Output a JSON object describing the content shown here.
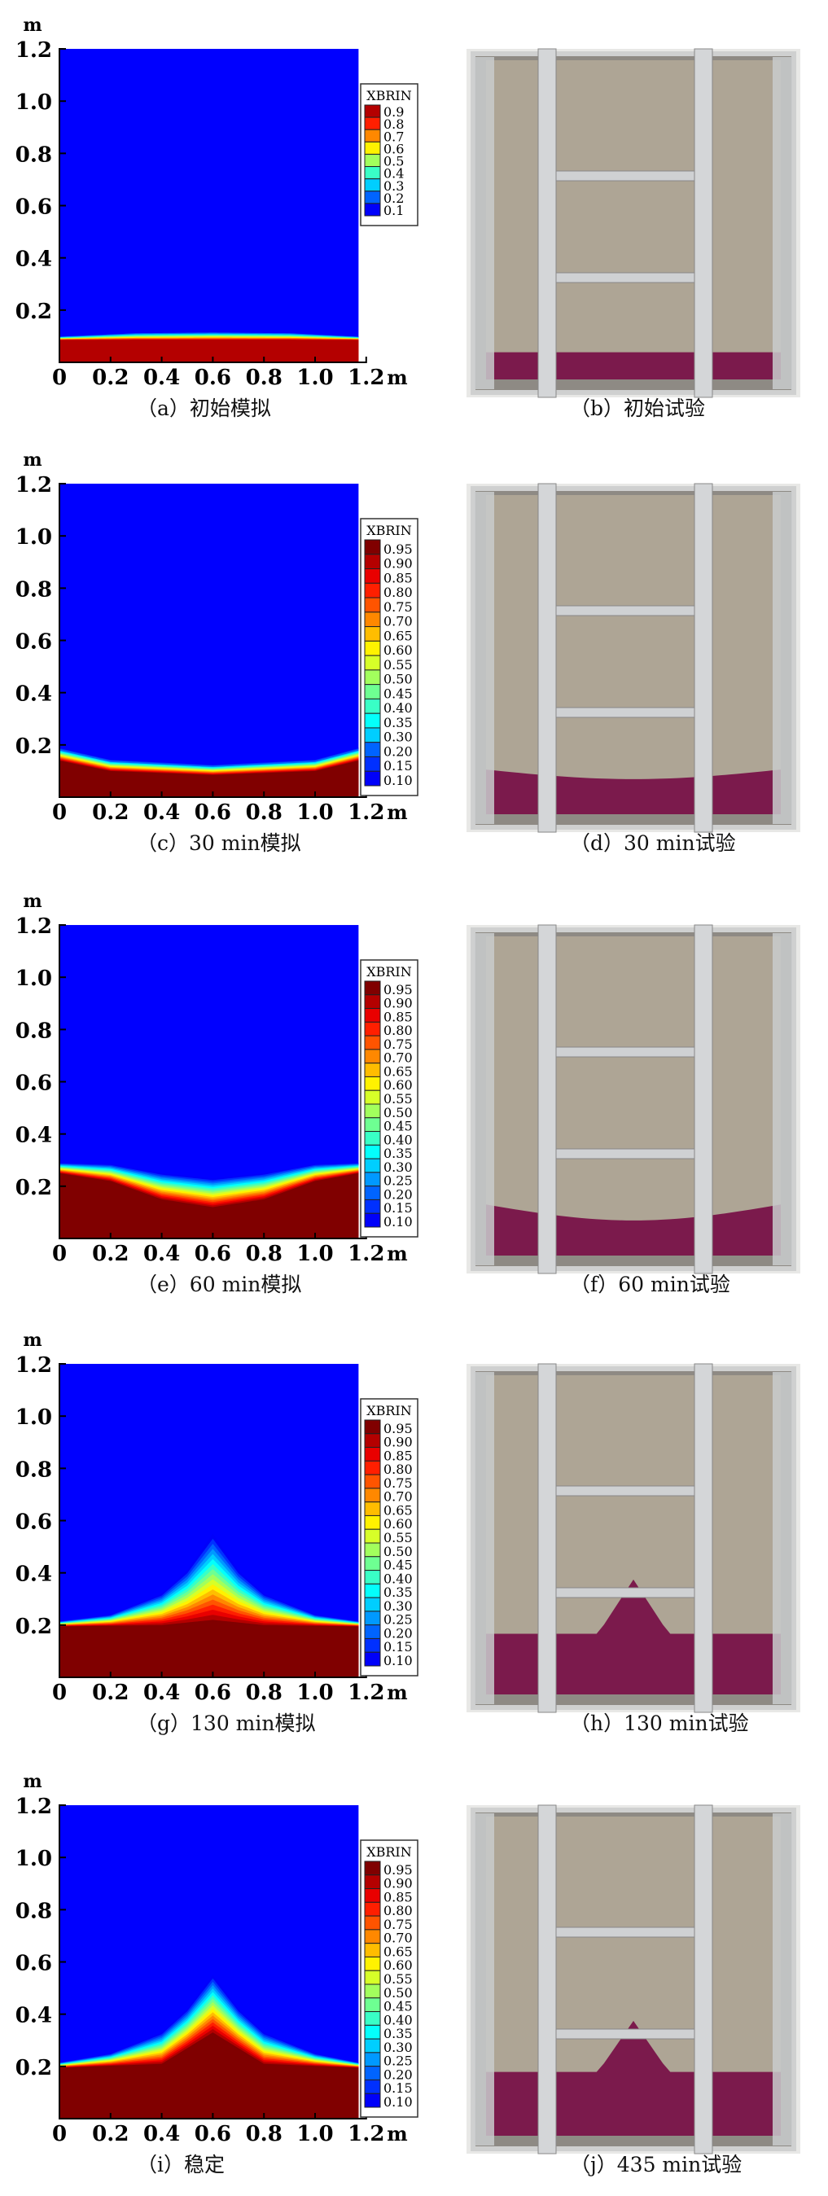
{
  "axes": {
    "unit_label": "m",
    "x_ticks": [
      "0",
      "0.2",
      "0.4",
      "0.6",
      "0.8",
      "1.0",
      "1.2"
    ],
    "y_ticks": [
      "0.2",
      "0.4",
      "0.6",
      "0.8",
      "1.0",
      "1.2"
    ],
    "legend_title": "XBRIN"
  },
  "colors": {
    "background": "#0000ff",
    "brine_photo": "#7b1a4c",
    "sand": "#aea595"
  },
  "chart_data": [
    {
      "type": "heatmap",
      "caption": "（a）初始模拟",
      "xlim": [
        0,
        1.2
      ],
      "ylim": [
        0,
        1.2
      ],
      "legend": [
        "0.9",
        "0.8",
        "0.7",
        "0.6",
        "0.5",
        "0.4",
        "0.3",
        "0.2",
        "0.1"
      ],
      "contour_high": [
        [
          0,
          0.085
        ],
        [
          0.6,
          0.085
        ],
        [
          1.17,
          0.085
        ]
      ],
      "contour_low": [
        [
          0,
          0.1
        ],
        [
          0.3,
          0.115
        ],
        [
          0.6,
          0.118
        ],
        [
          0.9,
          0.115
        ],
        [
          1.17,
          0.1
        ]
      ]
    },
    {
      "type": "heatmap",
      "caption": "（c）30 min模拟",
      "xlim": [
        0,
        1.2
      ],
      "ylim": [
        0,
        1.2
      ],
      "legend": [
        "0.95",
        "0.90",
        "0.85",
        "0.80",
        "0.75",
        "0.70",
        "0.65",
        "0.60",
        "0.55",
        "0.50",
        "0.45",
        "0.40",
        "0.35",
        "0.30",
        "0.20",
        "0.15",
        "0.10"
      ],
      "contour_high": [
        [
          0,
          0.14
        ],
        [
          0.2,
          0.1
        ],
        [
          0.6,
          0.085
        ],
        [
          1.0,
          0.1
        ],
        [
          1.17,
          0.14
        ]
      ],
      "contour_low": [
        [
          0,
          0.19
        ],
        [
          0.2,
          0.145
        ],
        [
          0.6,
          0.125
        ],
        [
          1.0,
          0.145
        ],
        [
          1.17,
          0.19
        ]
      ]
    },
    {
      "type": "heatmap",
      "caption": "（e）60 min模拟",
      "xlim": [
        0,
        1.2
      ],
      "ylim": [
        0,
        1.2
      ],
      "legend": [
        "0.95",
        "0.90",
        "0.85",
        "0.80",
        "0.75",
        "0.70",
        "0.65",
        "0.60",
        "0.55",
        "0.50",
        "0.45",
        "0.40",
        "0.35",
        "0.30",
        "0.25",
        "0.20",
        "0.15",
        "0.10"
      ],
      "contour_high": [
        [
          0,
          0.25
        ],
        [
          0.2,
          0.22
        ],
        [
          0.4,
          0.15
        ],
        [
          0.6,
          0.12
        ],
        [
          0.8,
          0.15
        ],
        [
          1.0,
          0.22
        ],
        [
          1.17,
          0.25
        ]
      ],
      "contour_low": [
        [
          0,
          0.29
        ],
        [
          0.2,
          0.285
        ],
        [
          0.4,
          0.25
        ],
        [
          0.6,
          0.23
        ],
        [
          0.8,
          0.25
        ],
        [
          1.0,
          0.285
        ],
        [
          1.17,
          0.29
        ]
      ]
    },
    {
      "type": "heatmap",
      "caption": "（g）130 min模拟",
      "xlim": [
        0,
        1.2
      ],
      "ylim": [
        0,
        1.2
      ],
      "legend": [
        "0.95",
        "0.90",
        "0.85",
        "0.80",
        "0.75",
        "0.70",
        "0.65",
        "0.60",
        "0.55",
        "0.50",
        "0.45",
        "0.40",
        "0.35",
        "0.30",
        "0.25",
        "0.20",
        "0.15",
        "0.10"
      ],
      "contour_high": [
        [
          0,
          0.195
        ],
        [
          0.4,
          0.2
        ],
        [
          0.6,
          0.22
        ],
        [
          0.8,
          0.2
        ],
        [
          1.17,
          0.195
        ]
      ],
      "contour_low": [
        [
          0,
          0.215
        ],
        [
          0.2,
          0.24
        ],
        [
          0.4,
          0.32
        ],
        [
          0.5,
          0.41
        ],
        [
          0.6,
          0.55
        ],
        [
          0.7,
          0.41
        ],
        [
          0.8,
          0.32
        ],
        [
          1.0,
          0.24
        ],
        [
          1.17,
          0.215
        ]
      ]
    },
    {
      "type": "heatmap",
      "caption": "（i）稳定",
      "xlim": [
        0,
        1.2
      ],
      "ylim": [
        0,
        1.2
      ],
      "legend": [
        "0.95",
        "0.90",
        "0.85",
        "0.80",
        "0.75",
        "0.70",
        "0.65",
        "0.60",
        "0.55",
        "0.50",
        "0.45",
        "0.40",
        "0.35",
        "0.30",
        "0.25",
        "0.20",
        "0.15",
        "0.10"
      ],
      "contour_high": [
        [
          0,
          0.195
        ],
        [
          0.4,
          0.21
        ],
        [
          0.55,
          0.3
        ],
        [
          0.6,
          0.33
        ],
        [
          0.65,
          0.3
        ],
        [
          0.8,
          0.21
        ],
        [
          1.17,
          0.195
        ]
      ],
      "contour_low": [
        [
          0,
          0.215
        ],
        [
          0.2,
          0.25
        ],
        [
          0.4,
          0.33
        ],
        [
          0.5,
          0.42
        ],
        [
          0.6,
          0.55
        ],
        [
          0.7,
          0.42
        ],
        [
          0.8,
          0.33
        ],
        [
          1.0,
          0.25
        ],
        [
          1.17,
          0.215
        ]
      ]
    }
  ],
  "photos": [
    {
      "caption": "（b）初始试验"
    },
    {
      "caption": "（d）30 min试验"
    },
    {
      "caption": "（f）60 min试验"
    },
    {
      "caption": "（h）130 min试验"
    },
    {
      "caption": "（j）435 min试验"
    }
  ]
}
